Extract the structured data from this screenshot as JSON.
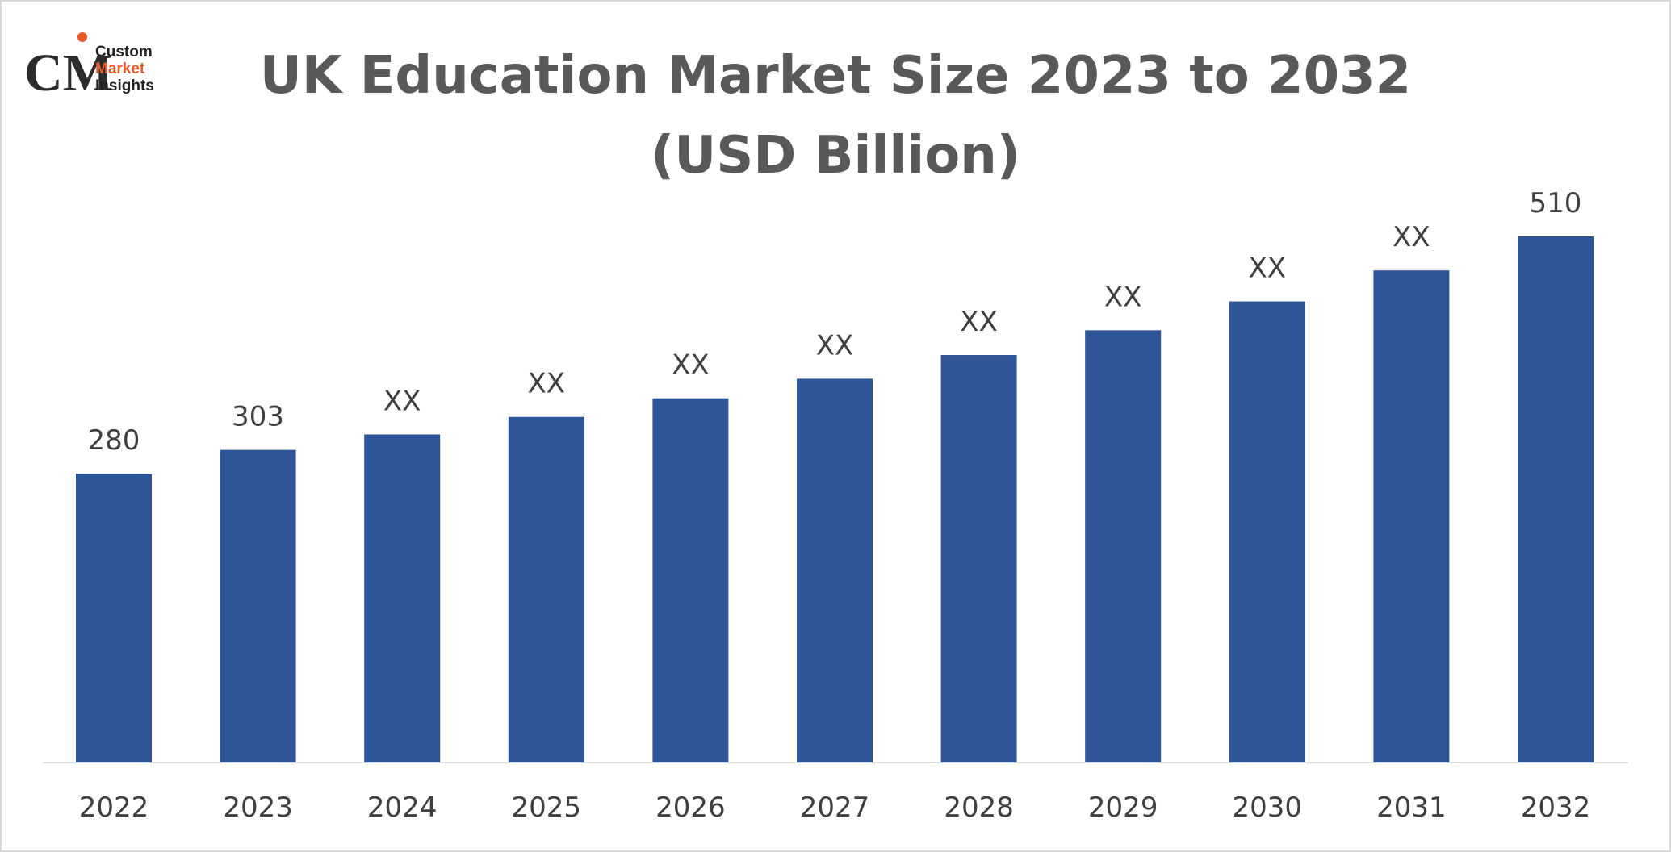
{
  "logo": {
    "line1": "Custom",
    "line2": "Market",
    "line3": "Insights"
  },
  "chart_data": {
    "type": "bar",
    "title": "UK Education Market Size 2023 to 2032 (USD Billion)",
    "categories": [
      "2022",
      "2023",
      "2024",
      "2025",
      "2026",
      "2027",
      "2028",
      "2029",
      "2030",
      "2031",
      "2032"
    ],
    "values": [
      280,
      303,
      318,
      335,
      353,
      372,
      395,
      419,
      447,
      477,
      510
    ],
    "value_labels": [
      "280",
      "303",
      "XX",
      "XX",
      "XX",
      "XX",
      "XX",
      "XX",
      "XX",
      "XX",
      "510"
    ],
    "color": "#2e5597"
  }
}
